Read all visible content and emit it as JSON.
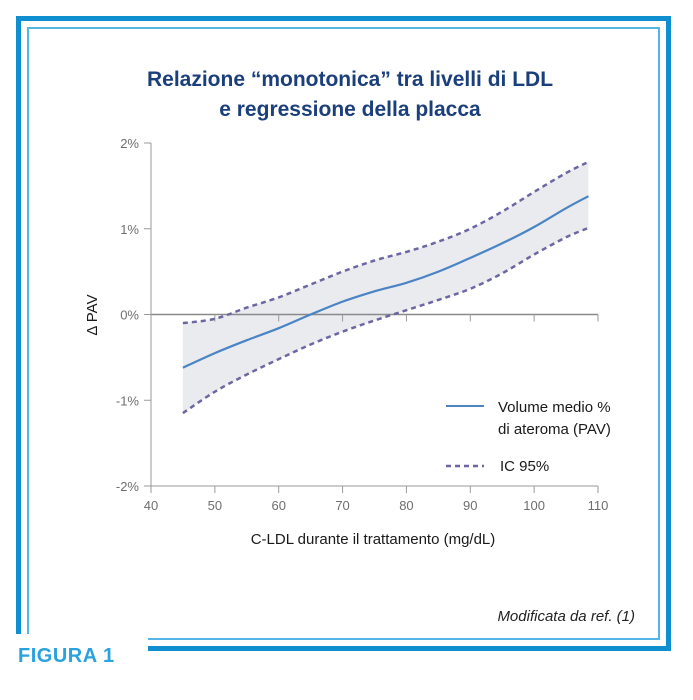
{
  "figure": {
    "label": "FIGURA 1",
    "title_line1": "Relazione “monotonica” tra livelli di LDL",
    "title_line2": "e regressione della placca",
    "source": "Modificata da ref. (1)"
  },
  "colors": {
    "frame_outer": "#0f8fd0",
    "frame_inner": "#53b6e6",
    "title": "#1b3f7a",
    "mean_line": "#4a84c4",
    "ci_line": "#6c66a3",
    "ci_band": "#e9ebee"
  },
  "chart_data": {
    "type": "line",
    "xlabel": "C-LDL durante il trattamento (mg/dL)",
    "ylabel": "Δ PAV",
    "xlim": [
      40,
      110
    ],
    "ylim": [
      -2,
      2
    ],
    "x_ticks": [
      "40",
      "50",
      "60",
      "70",
      "80",
      "90",
      "100",
      "110"
    ],
    "y_ticks": [
      "2%",
      "1%",
      "0%",
      "-1%",
      "-2%"
    ],
    "grid": false,
    "legend_position": "bottom-right",
    "series": [
      {
        "name_line1": "Volume medio %",
        "name_line2": "di ateroma (PAV)",
        "style": "solid",
        "x": [
          45,
          50,
          55,
          60,
          65,
          70,
          75,
          80,
          85,
          90,
          95,
          100,
          105,
          108.5
        ],
        "y": [
          -0.62,
          -0.45,
          -0.3,
          -0.16,
          0.0,
          0.15,
          0.27,
          0.37,
          0.5,
          0.66,
          0.83,
          1.02,
          1.24,
          1.38
        ]
      },
      {
        "name": "IC 95%",
        "style": "dashed",
        "upper": {
          "x": [
            45,
            50,
            55,
            60,
            65,
            70,
            75,
            80,
            85,
            90,
            95,
            100,
            105,
            108.5
          ],
          "y": [
            -0.1,
            -0.05,
            0.08,
            0.2,
            0.35,
            0.5,
            0.63,
            0.73,
            0.85,
            1.0,
            1.2,
            1.43,
            1.65,
            1.78
          ]
        },
        "lower": {
          "x": [
            45,
            50,
            55,
            60,
            65,
            70,
            75,
            80,
            85,
            90,
            95,
            100,
            105,
            108.5
          ],
          "y": [
            -1.15,
            -0.9,
            -0.7,
            -0.52,
            -0.35,
            -0.2,
            -0.07,
            0.05,
            0.17,
            0.3,
            0.48,
            0.7,
            0.9,
            1.01
          ]
        }
      }
    ]
  }
}
